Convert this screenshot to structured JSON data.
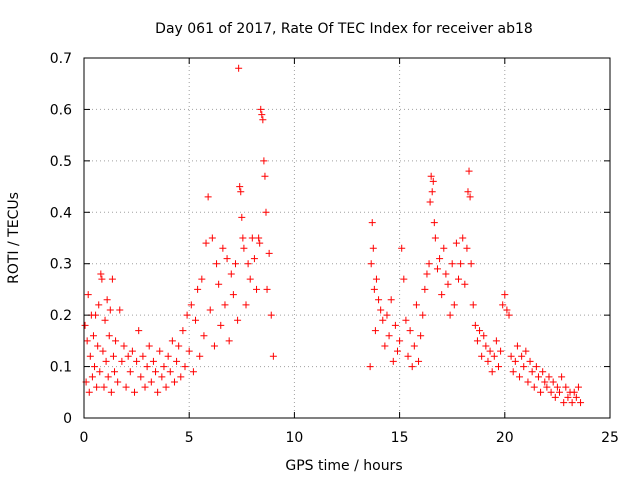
{
  "chart_data": {
    "type": "scatter",
    "title": "Day 061 of 2017, Rate Of TEC Index for receiver ab18",
    "xlabel": "GPS time / hours",
    "ylabel": "ROTI / TECUs",
    "xlim": [
      0,
      25
    ],
    "ylim": [
      0,
      0.7
    ],
    "xticks": [
      0,
      5,
      10,
      15,
      20,
      25
    ],
    "xtick_labels": [
      "0",
      "5",
      "10",
      "15",
      "20",
      "25"
    ],
    "yticks": [
      0,
      0.1,
      0.2,
      0.3,
      0.4,
      0.5,
      0.6,
      0.7
    ],
    "ytick_labels": [
      "0",
      "0.1",
      "0.2",
      "0.3",
      "0.4",
      "0.5",
      "0.6",
      "0.7"
    ],
    "grid": true,
    "marker": "+",
    "color": "#ff0000",
    "series": [
      {
        "points": [
          [
            0.05,
            0.18
          ],
          [
            0.1,
            0.07
          ],
          [
            0.15,
            0.15
          ],
          [
            0.2,
            0.24
          ],
          [
            0.25,
            0.05
          ],
          [
            0.3,
            0.12
          ],
          [
            0.35,
            0.2
          ],
          [
            0.4,
            0.08
          ],
          [
            0.45,
            0.16
          ],
          [
            0.5,
            0.1
          ],
          [
            0.55,
            0.2
          ],
          [
            0.6,
            0.06
          ],
          [
            0.65,
            0.14
          ],
          [
            0.7,
            0.22
          ],
          [
            0.75,
            0.09
          ],
          [
            0.8,
            0.28
          ],
          [
            0.85,
            0.27
          ],
          [
            0.9,
            0.13
          ],
          [
            0.95,
            0.06
          ],
          [
            1.0,
            0.19
          ],
          [
            1.05,
            0.11
          ],
          [
            1.1,
            0.23
          ],
          [
            1.15,
            0.08
          ],
          [
            1.2,
            0.16
          ],
          [
            1.25,
            0.21
          ],
          [
            1.3,
            0.05
          ],
          [
            1.35,
            0.27
          ],
          [
            1.4,
            0.12
          ],
          [
            1.45,
            0.09
          ],
          [
            1.5,
            0.15
          ],
          [
            1.6,
            0.07
          ],
          [
            1.7,
            0.21
          ],
          [
            1.8,
            0.11
          ],
          [
            1.9,
            0.14
          ],
          [
            2.0,
            0.06
          ],
          [
            2.1,
            0.12
          ],
          [
            2.2,
            0.09
          ],
          [
            2.3,
            0.13
          ],
          [
            2.4,
            0.05
          ],
          [
            2.5,
            0.11
          ],
          [
            2.6,
            0.17
          ],
          [
            2.7,
            0.08
          ],
          [
            2.8,
            0.12
          ],
          [
            2.9,
            0.06
          ],
          [
            3.0,
            0.1
          ],
          [
            3.1,
            0.14
          ],
          [
            3.2,
            0.07
          ],
          [
            3.3,
            0.11
          ],
          [
            3.4,
            0.09
          ],
          [
            3.5,
            0.05
          ],
          [
            3.6,
            0.13
          ],
          [
            3.7,
            0.08
          ],
          [
            3.8,
            0.1
          ],
          [
            3.9,
            0.06
          ],
          [
            4.0,
            0.12
          ],
          [
            4.1,
            0.09
          ],
          [
            4.2,
            0.15
          ],
          [
            4.3,
            0.07
          ],
          [
            4.4,
            0.11
          ],
          [
            4.5,
            0.14
          ],
          [
            4.6,
            0.08
          ],
          [
            4.7,
            0.17
          ],
          [
            4.8,
            0.1
          ],
          [
            4.9,
            0.2
          ],
          [
            5.0,
            0.13
          ],
          [
            5.1,
            0.22
          ],
          [
            5.2,
            0.09
          ],
          [
            5.3,
            0.19
          ],
          [
            5.4,
            0.25
          ],
          [
            5.5,
            0.12
          ],
          [
            5.6,
            0.27
          ],
          [
            5.7,
            0.16
          ],
          [
            5.8,
            0.34
          ],
          [
            5.9,
            0.43
          ],
          [
            6.0,
            0.21
          ],
          [
            6.1,
            0.35
          ],
          [
            6.2,
            0.14
          ],
          [
            6.3,
            0.3
          ],
          [
            6.4,
            0.26
          ],
          [
            6.5,
            0.18
          ],
          [
            6.6,
            0.33
          ],
          [
            6.7,
            0.22
          ],
          [
            6.8,
            0.31
          ],
          [
            6.9,
            0.15
          ],
          [
            7.0,
            0.28
          ],
          [
            7.1,
            0.24
          ],
          [
            7.2,
            0.3
          ],
          [
            7.3,
            0.19
          ],
          [
            7.35,
            0.68
          ],
          [
            7.4,
            0.45
          ],
          [
            7.45,
            0.44
          ],
          [
            7.5,
            0.39
          ],
          [
            7.55,
            0.35
          ],
          [
            7.6,
            0.33
          ],
          [
            7.7,
            0.22
          ],
          [
            7.8,
            0.3
          ],
          [
            7.9,
            0.27
          ],
          [
            8.0,
            0.35
          ],
          [
            8.1,
            0.31
          ],
          [
            8.2,
            0.25
          ],
          [
            8.3,
            0.35
          ],
          [
            8.35,
            0.34
          ],
          [
            8.4,
            0.6
          ],
          [
            8.45,
            0.59
          ],
          [
            8.5,
            0.58
          ],
          [
            8.55,
            0.5
          ],
          [
            8.6,
            0.47
          ],
          [
            8.65,
            0.4
          ],
          [
            8.7,
            0.25
          ],
          [
            8.8,
            0.32
          ],
          [
            8.9,
            0.2
          ],
          [
            9.0,
            0.12
          ],
          [
            13.6,
            0.1
          ],
          [
            13.65,
            0.3
          ],
          [
            13.7,
            0.38
          ],
          [
            13.75,
            0.33
          ],
          [
            13.8,
            0.25
          ],
          [
            13.85,
            0.17
          ],
          [
            13.9,
            0.27
          ],
          [
            14.0,
            0.23
          ],
          [
            14.1,
            0.21
          ],
          [
            14.2,
            0.19
          ],
          [
            14.3,
            0.14
          ],
          [
            14.4,
            0.2
          ],
          [
            14.5,
            0.16
          ],
          [
            14.6,
            0.23
          ],
          [
            14.7,
            0.11
          ],
          [
            14.8,
            0.18
          ],
          [
            14.9,
            0.13
          ],
          [
            15.0,
            0.15
          ],
          [
            15.1,
            0.33
          ],
          [
            15.2,
            0.27
          ],
          [
            15.3,
            0.19
          ],
          [
            15.4,
            0.12
          ],
          [
            15.5,
            0.17
          ],
          [
            15.6,
            0.1
          ],
          [
            15.7,
            0.14
          ],
          [
            15.8,
            0.22
          ],
          [
            15.9,
            0.11
          ],
          [
            16.0,
            0.16
          ],
          [
            16.1,
            0.2
          ],
          [
            16.2,
            0.25
          ],
          [
            16.3,
            0.28
          ],
          [
            16.4,
            0.3
          ],
          [
            16.45,
            0.42
          ],
          [
            16.5,
            0.47
          ],
          [
            16.55,
            0.44
          ],
          [
            16.6,
            0.46
          ],
          [
            16.65,
            0.38
          ],
          [
            16.7,
            0.35
          ],
          [
            16.8,
            0.29
          ],
          [
            16.9,
            0.31
          ],
          [
            17.0,
            0.24
          ],
          [
            17.1,
            0.33
          ],
          [
            17.2,
            0.28
          ],
          [
            17.3,
            0.26
          ],
          [
            17.4,
            0.2
          ],
          [
            17.5,
            0.3
          ],
          [
            17.6,
            0.22
          ],
          [
            17.7,
            0.34
          ],
          [
            17.8,
            0.27
          ],
          [
            17.9,
            0.3
          ],
          [
            18.0,
            0.35
          ],
          [
            18.1,
            0.26
          ],
          [
            18.2,
            0.33
          ],
          [
            18.25,
            0.44
          ],
          [
            18.3,
            0.48
          ],
          [
            18.35,
            0.43
          ],
          [
            18.4,
            0.3
          ],
          [
            18.5,
            0.22
          ],
          [
            18.6,
            0.18
          ],
          [
            18.7,
            0.15
          ],
          [
            18.8,
            0.17
          ],
          [
            18.9,
            0.12
          ],
          [
            19.0,
            0.16
          ],
          [
            19.1,
            0.14
          ],
          [
            19.2,
            0.11
          ],
          [
            19.3,
            0.13
          ],
          [
            19.4,
            0.09
          ],
          [
            19.5,
            0.12
          ],
          [
            19.6,
            0.15
          ],
          [
            19.7,
            0.1
          ],
          [
            19.8,
            0.13
          ],
          [
            19.9,
            0.22
          ],
          [
            20.0,
            0.24
          ],
          [
            20.1,
            0.21
          ],
          [
            20.2,
            0.2
          ],
          [
            20.3,
            0.12
          ],
          [
            20.4,
            0.09
          ],
          [
            20.5,
            0.11
          ],
          [
            20.6,
            0.14
          ],
          [
            20.7,
            0.08
          ],
          [
            20.8,
            0.12
          ],
          [
            20.9,
            0.1
          ],
          [
            21.0,
            0.13
          ],
          [
            21.1,
            0.07
          ],
          [
            21.2,
            0.11
          ],
          [
            21.3,
            0.09
          ],
          [
            21.4,
            0.06
          ],
          [
            21.5,
            0.1
          ],
          [
            21.6,
            0.08
          ],
          [
            21.7,
            0.05
          ],
          [
            21.8,
            0.09
          ],
          [
            21.9,
            0.07
          ],
          [
            22.0,
            0.06
          ],
          [
            22.1,
            0.08
          ],
          [
            22.2,
            0.05
          ],
          [
            22.3,
            0.07
          ],
          [
            22.4,
            0.04
          ],
          [
            22.5,
            0.06
          ],
          [
            22.6,
            0.05
          ],
          [
            22.7,
            0.08
          ],
          [
            22.8,
            0.03
          ],
          [
            22.9,
            0.06
          ],
          [
            23.0,
            0.04
          ],
          [
            23.1,
            0.05
          ],
          [
            23.2,
            0.03
          ],
          [
            23.3,
            0.05
          ],
          [
            23.4,
            0.04
          ],
          [
            23.5,
            0.06
          ],
          [
            23.6,
            0.03
          ]
        ]
      }
    ]
  }
}
